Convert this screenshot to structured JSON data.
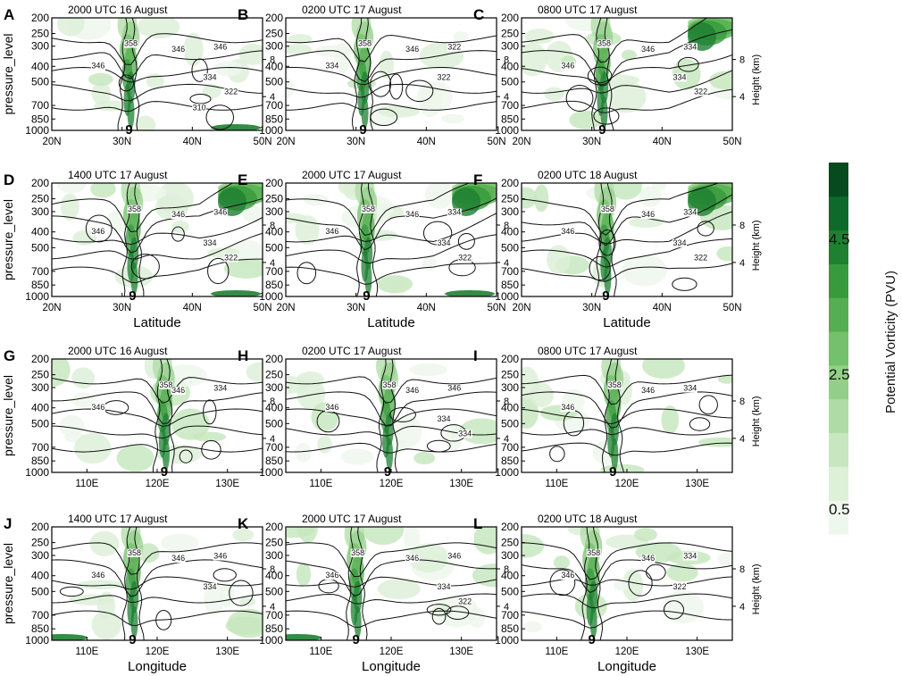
{
  "chart_data": {
    "type": "heatmap",
    "description_kind": "multi-panel vertical cross-sections (pressure vs latitude/longitude)",
    "colorbar": {
      "label": "Potential Vorticity (PVU)",
      "tick_labels": [
        "4.5",
        "2.5",
        "0.5"
      ],
      "tick_values": [
        4.5,
        2.5,
        0.5
      ],
      "levels": [
        0.5,
        1.0,
        1.5,
        2.0,
        2.5,
        3.0,
        3.5,
        4.0,
        4.5,
        5.0
      ],
      "colors": [
        "#eef7ec",
        "#ddf0d8",
        "#c8e7c0",
        "#afdca6",
        "#93cf89",
        "#74c06c",
        "#55ae51",
        "#379a3c",
        "#1e8031",
        "#0e6a2a",
        "#084a1f"
      ]
    },
    "y_axis": {
      "label": "pressure_level",
      "ticks": [
        200,
        250,
        300,
        400,
        500,
        700,
        850,
        1000
      ],
      "tick_labels": [
        "200",
        "250",
        "300",
        "400",
        "500",
        "700",
        "850",
        "1000"
      ],
      "scale": "log"
    },
    "right_axis": {
      "label": "Height (km)",
      "ticks": [
        4,
        8
      ],
      "tick_labels": [
        "4",
        "8"
      ]
    },
    "lat_axis": {
      "label": "Latitude",
      "range": [
        20,
        50
      ],
      "ticks": [
        20,
        30,
        40,
        50
      ],
      "tick_labels": [
        "20N",
        "30N",
        "40N",
        "50N"
      ]
    },
    "lon_axis": {
      "label": "Longitude",
      "range": [
        105,
        135
      ],
      "ticks": [
        110,
        120,
        130
      ],
      "tick_labels": [
        "110E",
        "120E",
        "130E"
      ]
    },
    "panels": [
      {
        "letter": "A",
        "title": "2000 UTC 16 August",
        "axis": "lat",
        "ty_center": 31.0,
        "show_xlabel": false,
        "show_ylabel": true,
        "show_height": false,
        "contour_labels": [
          "358",
          "346",
          "346",
          "346",
          "334",
          "322",
          "310"
        ]
      },
      {
        "letter": "B",
        "title": "0200 UTC 17 August",
        "axis": "lat",
        "ty_center": 31.0,
        "show_xlabel": false,
        "show_ylabel": false,
        "show_height": false,
        "contour_labels": [
          "358",
          "346",
          "334",
          "322",
          "322"
        ]
      },
      {
        "letter": "C",
        "title": "0800 UTC 17 August",
        "axis": "lat",
        "ty_center": 31.5,
        "show_xlabel": false,
        "show_ylabel": false,
        "show_height": true,
        "contour_labels": [
          "358",
          "346",
          "346",
          "334",
          "334",
          "322"
        ]
      },
      {
        "letter": "D",
        "title": "1400 UTC 17 August",
        "axis": "lat",
        "ty_center": 31.5,
        "show_xlabel": true,
        "show_ylabel": true,
        "show_height": false,
        "contour_labels": [
          "358",
          "346",
          "346",
          "346",
          "334",
          "322"
        ]
      },
      {
        "letter": "E",
        "title": "2000 UTC 17 August",
        "axis": "lat",
        "ty_center": 31.5,
        "show_xlabel": true,
        "show_ylabel": false,
        "show_height": false,
        "contour_labels": [
          "358",
          "346",
          "346",
          "334",
          "334",
          "322"
        ]
      },
      {
        "letter": "F",
        "title": "0200 UTC 18 August",
        "axis": "lat",
        "ty_center": 32.0,
        "show_xlabel": true,
        "show_ylabel": false,
        "show_height": true,
        "contour_labels": [
          "358",
          "346",
          "346",
          "334",
          "334",
          "322"
        ]
      },
      {
        "letter": "G",
        "title": "2000 UTC 16 August",
        "axis": "lon",
        "ty_center": 121.0,
        "show_xlabel": false,
        "show_ylabel": true,
        "show_height": false,
        "contour_labels": [
          "358",
          "346",
          "346",
          "334"
        ]
      },
      {
        "letter": "H",
        "title": "0200 UTC 17 August",
        "axis": "lon",
        "ty_center": 119.5,
        "show_xlabel": false,
        "show_ylabel": false,
        "show_height": false,
        "contour_labels": [
          "358",
          "346",
          "346",
          "346",
          "334",
          "334"
        ]
      },
      {
        "letter": "I",
        "title": "0800 UTC 17 August",
        "axis": "lon",
        "ty_center": 118.0,
        "show_xlabel": false,
        "show_ylabel": false,
        "show_height": true,
        "contour_labels": [
          "358",
          "346",
          "346",
          "334"
        ]
      },
      {
        "letter": "J",
        "title": "1400 UTC 17 August",
        "axis": "lon",
        "ty_center": 116.5,
        "show_xlabel": true,
        "show_ylabel": true,
        "show_height": false,
        "contour_labels": [
          "358",
          "346",
          "346",
          "346",
          "334"
        ]
      },
      {
        "letter": "K",
        "title": "2000 UTC 17 August",
        "axis": "lon",
        "ty_center": 115.0,
        "show_xlabel": true,
        "show_ylabel": false,
        "show_height": false,
        "contour_labels": [
          "358",
          "346",
          "346",
          "346",
          "334",
          "322"
        ]
      },
      {
        "letter": "L",
        "title": "0200 UTC 18 August",
        "axis": "lon",
        "ty_center": 115.0,
        "show_xlabel": true,
        "show_ylabel": false,
        "show_height": true,
        "contour_labels": [
          "358",
          "346",
          "346",
          "334",
          "322"
        ]
      }
    ]
  }
}
